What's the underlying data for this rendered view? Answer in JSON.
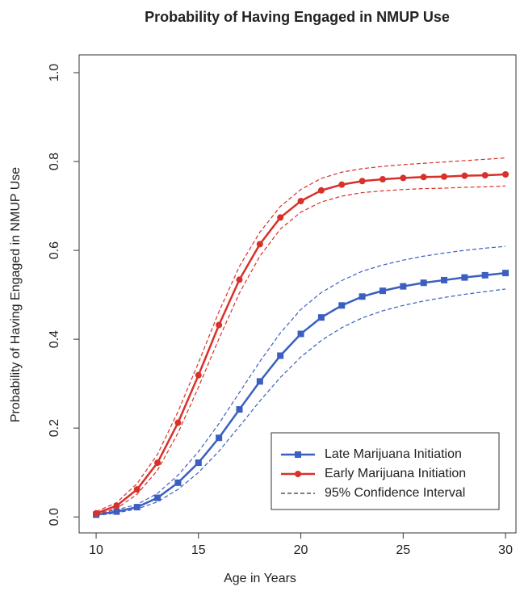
{
  "chart_data": {
    "type": "line",
    "title": "Probability of Having Engaged in NMUP Use",
    "x_label": "Age in Years",
    "y_label": "Probability of Having Engaged in NMUP Use",
    "x": [
      10,
      11,
      12,
      13,
      14,
      15,
      16,
      17,
      18,
      19,
      20,
      21,
      22,
      23,
      24,
      25,
      26,
      27,
      28,
      29,
      30
    ],
    "series": [
      {
        "name": "Late Marijuana Initiation",
        "color": "#3a5fc0",
        "marker": "square",
        "values": [
          0.005,
          0.012,
          0.022,
          0.043,
          0.077,
          0.122,
          0.178,
          0.242,
          0.305,
          0.363,
          0.412,
          0.449,
          0.476,
          0.496,
          0.509,
          0.519,
          0.527,
          0.533,
          0.539,
          0.544,
          0.549
        ],
        "lower": [
          0.003,
          0.009,
          0.018,
          0.034,
          0.062,
          0.1,
          0.148,
          0.204,
          0.261,
          0.314,
          0.36,
          0.397,
          0.426,
          0.448,
          0.464,
          0.476,
          0.486,
          0.494,
          0.501,
          0.507,
          0.513
        ],
        "upper": [
          0.008,
          0.016,
          0.028,
          0.053,
          0.094,
          0.147,
          0.21,
          0.28,
          0.35,
          0.414,
          0.467,
          0.505,
          0.532,
          0.553,
          0.567,
          0.578,
          0.587,
          0.594,
          0.6,
          0.605,
          0.609
        ]
      },
      {
        "name": "Early Marijuana Initiation",
        "color": "#d9302a",
        "marker": "circle",
        "values": [
          0.008,
          0.025,
          0.062,
          0.122,
          0.212,
          0.319,
          0.432,
          0.534,
          0.614,
          0.674,
          0.711,
          0.735,
          0.748,
          0.756,
          0.76,
          0.763,
          0.765,
          0.766,
          0.768,
          0.769,
          0.771
        ],
        "lower": [
          0.005,
          0.019,
          0.051,
          0.105,
          0.189,
          0.292,
          0.401,
          0.504,
          0.587,
          0.648,
          0.686,
          0.709,
          0.722,
          0.73,
          0.734,
          0.737,
          0.739,
          0.74,
          0.742,
          0.743,
          0.745
        ],
        "upper": [
          0.012,
          0.032,
          0.075,
          0.141,
          0.237,
          0.347,
          0.462,
          0.564,
          0.641,
          0.699,
          0.737,
          0.762,
          0.776,
          0.784,
          0.789,
          0.793,
          0.796,
          0.799,
          0.802,
          0.805,
          0.808
        ]
      }
    ],
    "interval_label": "95% Confidence Interval",
    "xlim": [
      9.17,
      30.51
    ],
    "ylim": [
      -0.036,
      1.04
    ],
    "xticks": [
      10,
      15,
      20,
      25,
      30
    ],
    "yticks": [
      {
        "value": 0,
        "label": "0.0"
      },
      {
        "value": 0.2,
        "label": "0.2"
      },
      {
        "value": 0.4,
        "label": "0.4"
      },
      {
        "value": 0.6,
        "label": "0.6"
      },
      {
        "value": 0.8,
        "label": "0.8"
      },
      {
        "value": 1,
        "label": "1.0"
      }
    ],
    "legend": "lower-right"
  }
}
